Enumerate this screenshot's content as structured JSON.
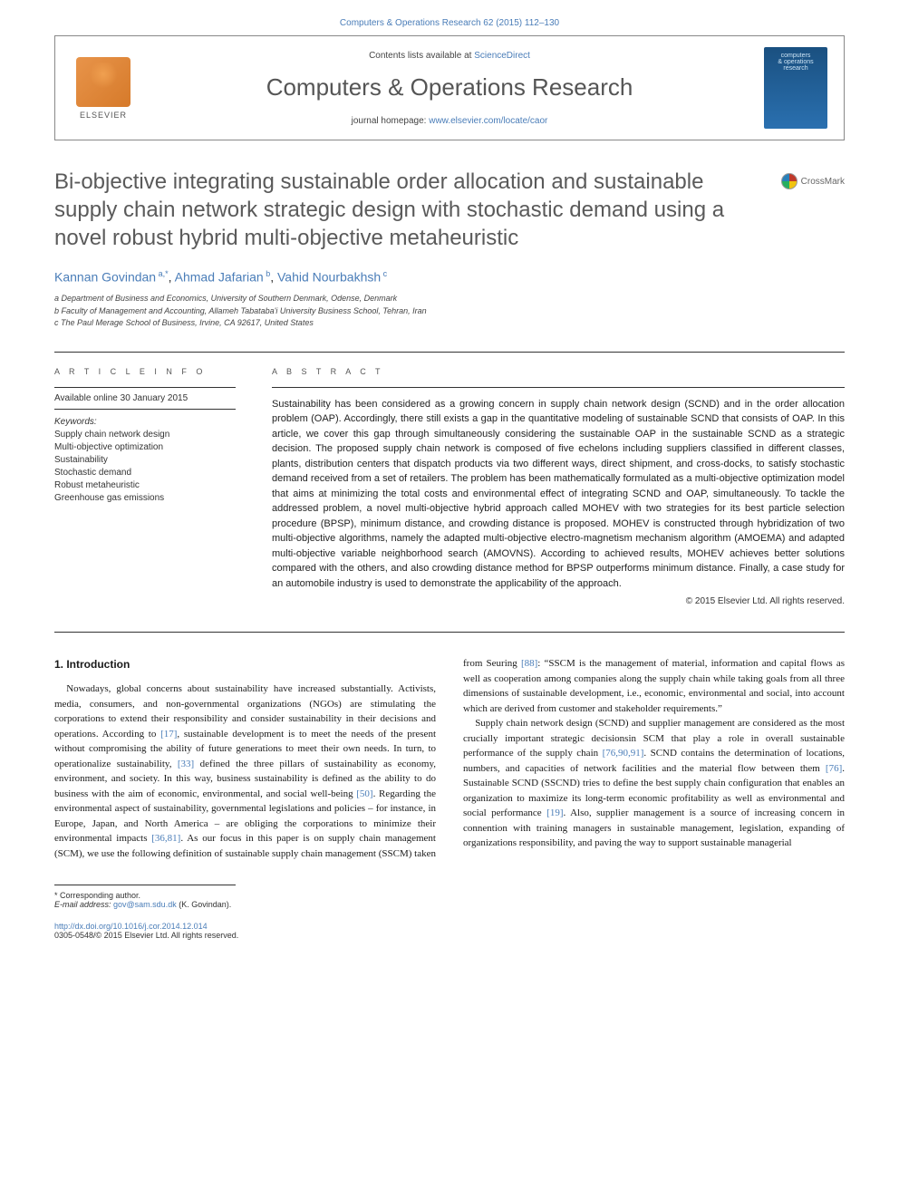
{
  "top_link_text": "Computers & Operations Research 62 (2015) 112–130",
  "header": {
    "contents_text": "Contents lists available at ",
    "contents_link": "ScienceDirect",
    "journal_title": "Computers & Operations Research",
    "homepage_text": "journal homepage: ",
    "homepage_link": "www.elsevier.com/locate/caor",
    "elsevier_label": "ELSEVIER",
    "cover_line1": "computers",
    "cover_line2": "& operations",
    "cover_line3": "research"
  },
  "crossmark_label": "CrossMark",
  "article_title": "Bi-objective integrating sustainable order allocation and sustainable supply chain network strategic design with stochastic demand using a novel robust hybrid multi-objective metaheuristic",
  "authors_html": "Kannan Govindan <sup>a,*</sup>, Ahmad Jafarian <sup>b</sup>, Vahid Nourbakhsh <sup>c</sup>",
  "affiliations": [
    "a Department of Business and Economics, University of Southern Denmark, Odense, Denmark",
    "b Faculty of Management and Accounting, Allameh Tabataba'i University Business School, Tehran, Iran",
    "c The Paul Merage School of Business, Irvine, CA 92617, United States"
  ],
  "article_info_heading": "A R T I C L E   I N F O",
  "abstract_heading": "A B S T R A C T",
  "available_online": "Available online 30 January 2015",
  "keywords_label": "Keywords:",
  "keywords": [
    "Supply chain network design",
    "Multi-objective optimization",
    "Sustainability",
    "Stochastic demand",
    "Robust metaheuristic",
    "Greenhouse gas emissions"
  ],
  "abstract_text": "Sustainability has been considered as a growing concern in supply chain network design (SCND) and in the order allocation problem (OAP). Accordingly, there still exists a gap in the quantitative modeling of sustainable SCND that consists of OAP. In this article, we cover this gap through simultaneously considering the sustainable OAP in the sustainable SCND as a strategic decision. The proposed supply chain network is composed of five echelons including suppliers classified in different classes, plants, distribution centers that dispatch products via two different ways, direct shipment, and cross-docks, to satisfy stochastic demand received from a set of retailers. The problem has been mathematically formulated as a multi-objective optimization model that aims at minimizing the total costs and environmental effect of integrating SCND and OAP, simultaneously. To tackle the addressed problem, a novel multi-objective hybrid approach called MOHEV with two strategies for its best particle selection procedure (BPSP), minimum distance, and crowding distance is proposed. MOHEV is constructed through hybridization of two multi-objective algorithms, namely the adapted multi-objective electro-magnetism mechanism algorithm (AMOEMA) and adapted multi-objective variable neighborhood search (AMOVNS). According to achieved results, MOHEV achieves better solutions compared with the others, and also crowding distance method for BPSP outperforms minimum distance. Finally, a case study for an automobile industry is used to demonstrate the applicability of the approach.",
  "copyright": "© 2015 Elsevier Ltd. All rights reserved.",
  "section1_heading": "1.  Introduction",
  "body": {
    "p1_a": "Nowadays, global concerns about sustainability have increased substantially. Activists, media, consumers, and non-governmental organizations (NGOs) are stimulating the corporations to extend their responsibility and consider sustainability in their decisions and operations. According to ",
    "c1": "[17]",
    "p1_b": ", sustainable development is to meet the needs of the present without compromising the ability of future generations to meet their own needs. In turn, to operationalize sustainability, ",
    "c2": "[33]",
    "p1_c": " defined the three pillars of sustainability as economy, environment, and society. In this way, business sustainability is defined as the ability to do business with the aim of economic, environmental, and social well-being ",
    "c3": "[50]",
    "p1_d": ". Regarding the environmental aspect of sustainability, governmental legislations and policies – for instance, in Europe, Japan, and North America – are obliging the corporations to minimize their environmental impacts ",
    "c4": "[36,81]",
    "p1_e": ". As our focus in this paper is on supply chain management (SCM), we use the following definition of sustainable supply chain management (SSCM) taken from Seuring ",
    "c5": "[88]",
    "p1_f": ": “SSCM is the management of material, information and capital flows as well as cooperation among companies along the supply chain while taking goals from all three dimensions of sustainable development, i.e., economic, environmental and social, into account which are derived from customer and stakeholder requirements.”",
    "p2_a": "Supply chain network design (SCND) and supplier management are considered as the most crucially important strategic decisionsin SCM that play a role in overall sustainable performance of the supply chain ",
    "c6": "[76,90,91]",
    "p2_b": ". SCND contains the determination of locations, numbers, and capacities of network facilities and the material flow between them ",
    "c7": "[76]",
    "p2_c": ". Sustainable SCND (SSCND) tries to define the best supply chain configuration that enables an organization to maximize its long-term economic profitability as well as environmental and social performance ",
    "c8": "[19]",
    "p2_d": ". Also, supplier management is a source of increasing concern in connention with training managers in sustainable management, legislation, expanding of organizations responsibility, and paving the way to support sustainable managerial"
  },
  "footnote": {
    "corresponding": "* Corresponding author.",
    "email_label": "E-mail address: ",
    "email": "gov@sam.sdu.dk",
    "email_after": " (K. Govindan)."
  },
  "doi_link": "http://dx.doi.org/10.1016/j.cor.2014.12.014",
  "issn_line": "0305-0548/© 2015 Elsevier Ltd. All rights reserved."
}
